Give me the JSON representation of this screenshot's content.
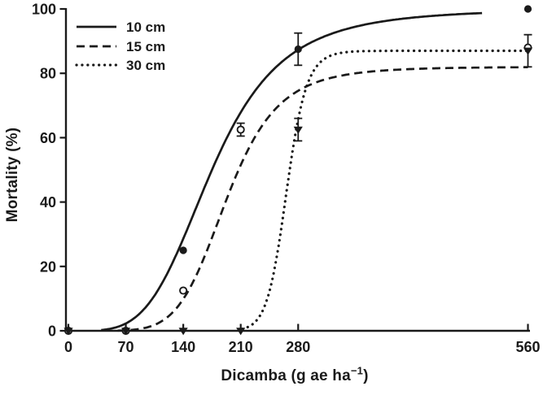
{
  "chart_data": {
    "type": "line",
    "title": "",
    "xlabel": "Dicamba (g ae ha−1)",
    "xlabel_parts": {
      "main": "Dicamba (g ae ha",
      "sup": "−1",
      "end": ")"
    },
    "ylabel": "Mortality (%)",
    "xlim": [
      0,
      565
    ],
    "ylim": [
      0,
      100
    ],
    "x_ticks": [
      0,
      70,
      140,
      210,
      280,
      560
    ],
    "y_ticks": [
      0,
      20,
      40,
      60,
      80,
      100
    ],
    "grid": false,
    "legend_position": "top-left",
    "axis_color": "#1a1a1a",
    "background_color": "#ffffff",
    "series": [
      {
        "name": "10 cm",
        "line_style": "solid",
        "marker": "filled-circle",
        "points": [
          {
            "x": 0,
            "y": 0
          },
          {
            "x": 70,
            "y": 0
          },
          {
            "x": 140,
            "y": 25
          },
          {
            "x": 280,
            "y": 87.5,
            "err": 5
          },
          {
            "x": 560,
            "y": 100
          }
        ],
        "fit": {
          "model": "log-logistic",
          "max": 100,
          "x50": 175,
          "slope": 4.1,
          "x_start": 40,
          "x_end": 505
        }
      },
      {
        "name": "15 cm",
        "line_style": "dashed",
        "marker": "open-circle",
        "points": [
          {
            "x": 0,
            "y": 0
          },
          {
            "x": 70,
            "y": 0
          },
          {
            "x": 140,
            "y": 12.5
          },
          {
            "x": 210,
            "y": 62.5,
            "err": 2
          },
          {
            "x": 560,
            "y": 88
          }
        ],
        "fit": {
          "model": "log-logistic",
          "max": 82,
          "x50": 193,
          "slope": 6.2,
          "x_start": 60,
          "x_end": 561
        }
      },
      {
        "name": "30 cm",
        "line_style": "dotted",
        "marker": "filled-triangle-down",
        "points": [
          {
            "x": 0,
            "y": 0
          },
          {
            "x": 70,
            "y": 0
          },
          {
            "x": 140,
            "y": 0
          },
          {
            "x": 210,
            "y": 0
          },
          {
            "x": 280,
            "y": 62.5,
            "err": 3.5
          },
          {
            "x": 560,
            "y": 87,
            "err": 5
          }
        ],
        "fit": {
          "model": "log-logistic",
          "max": 87,
          "x50": 266,
          "slope": 22,
          "x_start": 212,
          "x_end": 561
        }
      }
    ]
  }
}
